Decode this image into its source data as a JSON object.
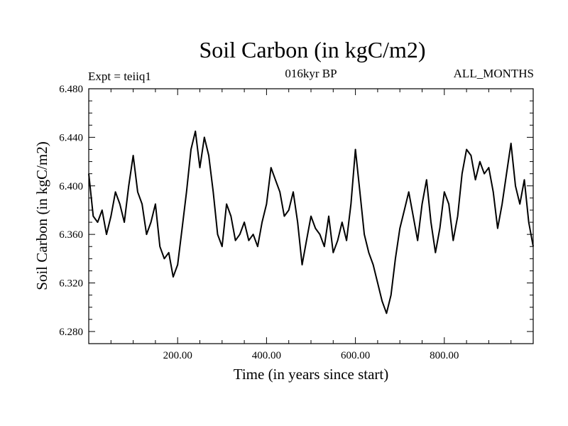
{
  "chart_data": {
    "type": "line",
    "title": "Soil Carbon (in kgC/m2)",
    "subtitle_left": "Expt = teiiq1",
    "subtitle_center": "016kyr BP",
    "subtitle_right": "ALL_MONTHS",
    "xlabel": "Time (in years since start)",
    "ylabel": "Soil Carbon (in kgC/m2)",
    "xlim": [
      0,
      1000
    ],
    "ylim": [
      6.27,
      6.48
    ],
    "x_ticks": [
      200,
      400,
      600,
      800
    ],
    "x_tick_labels": [
      "200.00",
      "400.00",
      "600.00",
      "800.00"
    ],
    "y_ticks": [
      6.28,
      6.32,
      6.36,
      6.4,
      6.44,
      6.48
    ],
    "y_tick_labels": [
      "6.280",
      "6.320",
      "6.360",
      "6.400",
      "6.440",
      "6.480"
    ],
    "grid": false,
    "series": [
      {
        "color": "#000000",
        "x": [
          0,
          10,
          20,
          30,
          40,
          50,
          60,
          70,
          80,
          90,
          100,
          110,
          120,
          130,
          140,
          150,
          160,
          170,
          180,
          190,
          200,
          210,
          220,
          230,
          240,
          250,
          260,
          270,
          280,
          290,
          300,
          310,
          320,
          330,
          340,
          350,
          360,
          370,
          380,
          390,
          400,
          410,
          420,
          430,
          440,
          450,
          460,
          470,
          480,
          490,
          500,
          510,
          520,
          530,
          540,
          550,
          560,
          570,
          580,
          590,
          600,
          610,
          620,
          630,
          640,
          650,
          660,
          670,
          680,
          690,
          700,
          710,
          720,
          730,
          740,
          750,
          760,
          770,
          780,
          790,
          800,
          810,
          820,
          830,
          840,
          850,
          860,
          870,
          880,
          890,
          900,
          910,
          920,
          930,
          940,
          950,
          960,
          970,
          980,
          990,
          1000
        ],
        "values": [
          6.41,
          6.375,
          6.37,
          6.38,
          6.36,
          6.375,
          6.395,
          6.385,
          6.37,
          6.4,
          6.425,
          6.395,
          6.385,
          6.36,
          6.37,
          6.385,
          6.35,
          6.34,
          6.345,
          6.325,
          6.335,
          6.365,
          6.395,
          6.43,
          6.445,
          6.415,
          6.44,
          6.425,
          6.395,
          6.36,
          6.35,
          6.385,
          6.375,
          6.355,
          6.36,
          6.37,
          6.355,
          6.36,
          6.35,
          6.37,
          6.385,
          6.415,
          6.405,
          6.395,
          6.375,
          6.38,
          6.395,
          6.37,
          6.335,
          6.355,
          6.375,
          6.365,
          6.36,
          6.35,
          6.375,
          6.345,
          6.355,
          6.37,
          6.355,
          6.385,
          6.43,
          6.395,
          6.36,
          6.345,
          6.335,
          6.32,
          6.305,
          6.295,
          6.31,
          6.34,
          6.365,
          6.38,
          6.395,
          6.375,
          6.355,
          6.385,
          6.405,
          6.37,
          6.345,
          6.365,
          6.395,
          6.385,
          6.355,
          6.375,
          6.41,
          6.43,
          6.425,
          6.405,
          6.42,
          6.41,
          6.415,
          6.395,
          6.365,
          6.385,
          6.41,
          6.435,
          6.4,
          6.385,
          6.405,
          6.37,
          6.35
        ]
      }
    ]
  }
}
